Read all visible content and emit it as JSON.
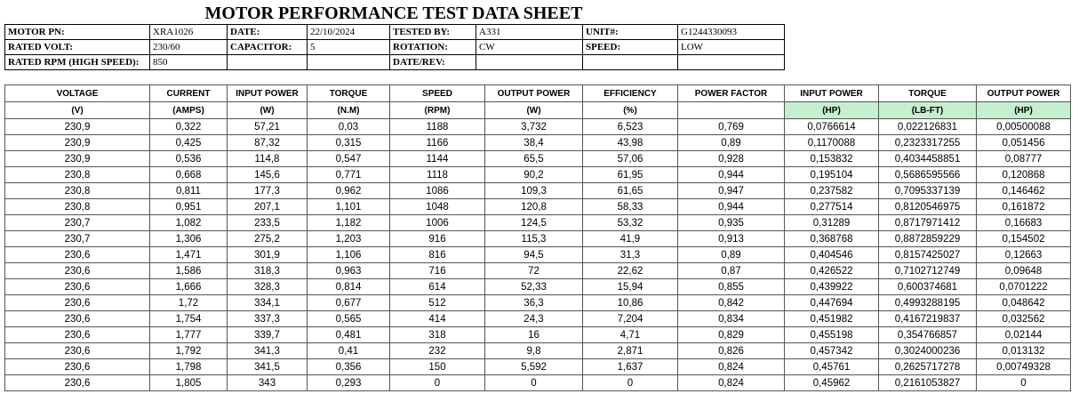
{
  "header": {
    "title": "MOTOR PERFORMANCE TEST DATA SHEET"
  },
  "info": {
    "rows": [
      [
        {
          "label": "MOTOR PN:",
          "value": "XRA1026"
        },
        {
          "label": "DATE:",
          "value": "22/10/2024"
        },
        {
          "label": "TESTED BY:",
          "value": "A331"
        },
        {
          "label": "UNIT#:",
          "value": "G1244330093"
        }
      ],
      [
        {
          "label": "RATED VOLT:",
          "value": "230/60"
        },
        {
          "label": "CAPACITOR:",
          "value": "5"
        },
        {
          "label": "ROTATION:",
          "value": "CW"
        },
        {
          "label": "SPEED:",
          "value": "LOW"
        }
      ],
      [
        {
          "label": "RATED RPM (HIGH SPEED):",
          "value": "850"
        },
        {},
        {
          "label": "DATE/REV:"
        },
        {}
      ]
    ]
  },
  "table": {
    "columns": [
      {
        "name": "VOLTAGE",
        "unit": "(V)"
      },
      {
        "name": "CURRENT",
        "unit": "(AMPS)"
      },
      {
        "name": "INPUT POWER",
        "unit": "(W)"
      },
      {
        "name": "TORQUE",
        "unit": "(N.M)"
      },
      {
        "name": "SPEED",
        "unit": "(RPM)"
      },
      {
        "name": "OUTPUT POWER",
        "unit": "(W)"
      },
      {
        "name": "EFFICIENCY",
        "unit": "(%)"
      },
      {
        "name": "POWER FACTOR"
      },
      {
        "name": "INPUT POWER",
        "unit": "(HP)"
      },
      {
        "name": "TORQUE",
        "unit": "(LB-FT)"
      },
      {
        "name": "OUTPUT POWER",
        "unit": "(HP)"
      }
    ],
    "rows": [
      [
        "230,9",
        "0,322",
        "57,21",
        "0,03",
        "1188",
        "3,732",
        "6,523",
        "0,769",
        "0,0766614",
        "0,022126831",
        "0,00500088"
      ],
      [
        "230,9",
        "0,425",
        "87,32",
        "0,315",
        "1166",
        "38,4",
        "43,98",
        "0,89",
        "0,1170088",
        "0,2323317255",
        "0,051456"
      ],
      [
        "230,9",
        "0,536",
        "114,8",
        "0,547",
        "1144",
        "65,5",
        "57,06",
        "0,928",
        "0,153832",
        "0,4034458851",
        "0,08777"
      ],
      [
        "230,8",
        "0,668",
        "145,6",
        "0,771",
        "1118",
        "90,2",
        "61,95",
        "0,944",
        "0,195104",
        "0,5686595566",
        "0,120868"
      ],
      [
        "230,8",
        "0,811",
        "177,3",
        "0,962",
        "1086",
        "109,3",
        "61,65",
        "0,947",
        "0,237582",
        "0,7095337139",
        "0,146462"
      ],
      [
        "230,8",
        "0,951",
        "207,1",
        "1,101",
        "1048",
        "120,8",
        "58,33",
        "0,944",
        "0,277514",
        "0,8120546975",
        "0,161872"
      ],
      [
        "230,7",
        "1,082",
        "233,5",
        "1,182",
        "1006",
        "124,5",
        "53,32",
        "0,935",
        "0,31289",
        "0,8717971412",
        "0,16683"
      ],
      [
        "230,7",
        "1,306",
        "275,2",
        "1,203",
        "916",
        "115,3",
        "41,9",
        "0,913",
        "0,368768",
        "0,8872859229",
        "0,154502"
      ],
      [
        "230,6",
        "1,471",
        "301,9",
        "1,106",
        "816",
        "94,5",
        "31,3",
        "0,89",
        "0,404546",
        "0,8157425027",
        "0,12663"
      ],
      [
        "230,6",
        "1,586",
        "318,3",
        "0,963",
        "716",
        "72",
        "22,62",
        "0,87",
        "0,426522",
        "0,7102712749",
        "0,09648"
      ],
      [
        "230,6",
        "1,666",
        "328,3",
        "0,814",
        "614",
        "52,33",
        "15,94",
        "0,855",
        "0,439922",
        "0,600374681",
        "0,0701222"
      ],
      [
        "230,6",
        "1,72",
        "334,1",
        "0,677",
        "512",
        "36,3",
        "10,86",
        "0,842",
        "0,447694",
        "0,4993288195",
        "0,048642"
      ],
      [
        "230,6",
        "1,754",
        "337,3",
        "0,565",
        "414",
        "24,3",
        "7,204",
        "0,834",
        "0,451982",
        "0,4167219837",
        "0,032562"
      ],
      [
        "230,6",
        "1,777",
        "339,7",
        "0,481",
        "318",
        "16",
        "4,71",
        "0,829",
        "0,455198",
        "0,354766857",
        "0,02144"
      ],
      [
        "230,6",
        "1,792",
        "341,3",
        "0,41",
        "232",
        "9,8",
        "2,871",
        "0,826",
        "0,457342",
        "0,3024000236",
        "0,013132"
      ],
      [
        "230,6",
        "1,798",
        "341,5",
        "0,356",
        "150",
        "5,592",
        "1,637",
        "0,824",
        "0,45761",
        "0,2625717278",
        "0,00749328"
      ],
      [
        "230,6",
        "1,805",
        "343",
        "0,293",
        "0",
        "0",
        "0",
        "0,824",
        "0,45962",
        "0,2161053827",
        "0"
      ]
    ]
  }
}
